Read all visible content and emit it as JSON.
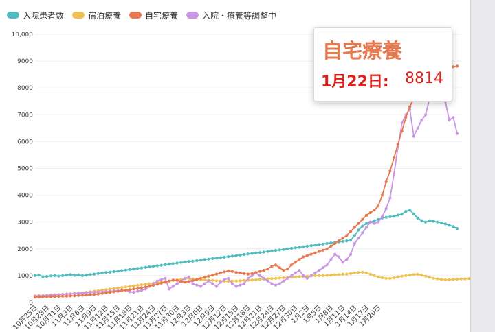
{
  "chart_data": {
    "type": "line",
    "title": "",
    "xlabel": "",
    "ylabel": "",
    "ylim": [
      0,
      10000
    ],
    "yticks": [
      0,
      1000,
      2000,
      3000,
      4000,
      5000,
      6000,
      7000,
      8000,
      9000,
      10000
    ],
    "ytick_labels": [
      "0",
      "1000",
      "2000",
      "3000",
      "4000",
      "5000",
      "6000",
      "7000",
      "8000",
      "9000",
      "10,000"
    ],
    "xtick_labels": [
      "10月25日",
      "10月28日",
      "10月31日",
      "11月3日",
      "11月6日",
      "11月9日",
      "11月12日",
      "11月15日",
      "11月18日",
      "11月21日",
      "11月24日",
      "11月27日",
      "11月30日",
      "12月3日",
      "12月6日",
      "12月9日",
      "12月12日",
      "12月15日",
      "12月18日",
      "12月21日",
      "12月24日",
      "12月27日",
      "12月30日",
      "1月2日",
      "1月5日",
      "1月8日",
      "1月11日",
      "1月14日",
      "1月17日",
      "1月20日"
    ],
    "grid": true,
    "legend_position": "top-left",
    "series": [
      {
        "name": "入院患者数",
        "color": "#4fbcbf",
        "values": [
          1000,
          1020,
          960,
          970,
          990,
          1000,
          980,
          1000,
          1020,
          1040,
          1010,
          1030,
          1000,
          1020,
          1040,
          1060,
          1080,
          1100,
          1120,
          1130,
          1150,
          1170,
          1190,
          1210,
          1230,
          1250,
          1270,
          1290,
          1310,
          1330,
          1350,
          1370,
          1390,
          1410,
          1430,
          1450,
          1470,
          1490,
          1510,
          1530,
          1540,
          1560,
          1580,
          1600,
          1620,
          1640,
          1660,
          1670,
          1690,
          1710,
          1730,
          1750,
          1770,
          1790,
          1810,
          1830,
          1850,
          1860,
          1880,
          1900,
          1920,
          1940,
          1960,
          1980,
          2000,
          2020,
          2040,
          2060,
          2080,
          2100,
          2120,
          2140,
          2160,
          2180,
          2200,
          2220,
          2240,
          2260,
          2280,
          2300,
          2320,
          2500,
          2700,
          2850,
          2950,
          3000,
          3050,
          3100,
          3150,
          3180,
          3200,
          3220,
          3260,
          3300,
          3400,
          3450,
          3300,
          3150,
          3050,
          3000,
          3050,
          3030,
          3000,
          2970,
          2930,
          2880,
          2830,
          2760
        ]
      },
      {
        "name": "宿泊療養",
        "color": "#efc04e",
        "values": [
          250,
          255,
          260,
          270,
          280,
          290,
          300,
          310,
          320,
          330,
          340,
          350,
          360,
          380,
          400,
          420,
          440,
          460,
          480,
          500,
          520,
          540,
          560,
          580,
          600,
          620,
          640,
          660,
          680,
          700,
          720,
          740,
          760,
          780,
          800,
          820,
          840,
          860,
          880,
          900,
          880,
          860,
          850,
          840,
          830,
          820,
          810,
          800,
          790,
          790,
          800,
          800,
          810,
          820,
          830,
          840,
          850,
          860,
          870,
          880,
          890,
          900,
          910,
          920,
          930,
          940,
          950,
          960,
          970,
          980,
          990,
          1000,
          1000,
          1000,
          1010,
          1020,
          1030,
          1040,
          1050,
          1060,
          1080,
          1100,
          1120,
          1130,
          1100,
          1050,
          1000,
          950,
          920,
          900,
          900,
          920,
          950,
          980,
          1000,
          1020,
          1040,
          1050,
          1020,
          980,
          940,
          900,
          880,
          860,
          850,
          850,
          860,
          870,
          880,
          880,
          890
        ]
      },
      {
        "name": "自宅療養",
        "color": "#e8794f",
        "values": [
          200,
          205,
          210,
          215,
          220,
          225,
          230,
          235,
          240,
          245,
          250,
          260,
          270,
          280,
          290,
          300,
          320,
          340,
          360,
          380,
          400,
          420,
          440,
          460,
          480,
          500,
          520,
          550,
          580,
          610,
          640,
          680,
          720,
          760,
          800,
          840,
          820,
          780,
          760,
          780,
          820,
          860,
          900,
          940,
          980,
          1020,
          1060,
          1100,
          1140,
          1180,
          1160,
          1120,
          1100,
          1080,
          1060,
          1080,
          1120,
          1160,
          1200,
          1250,
          1350,
          1400,
          1300,
          1200,
          1250,
          1400,
          1500,
          1600,
          1700,
          1750,
          1800,
          1850,
          1900,
          1950,
          2000,
          2100,
          2200,
          2300,
          2400,
          2500,
          2650,
          2800,
          2950,
          3100,
          3250,
          3350,
          3450,
          3600,
          4000,
          4500,
          4900,
          5400,
          5900,
          6400,
          6900,
          7300,
          7600,
          7900,
          8100,
          8300,
          8400,
          8500,
          8600,
          8650,
          8700,
          8750,
          8790,
          8814
        ]
      },
      {
        "name": "入院・療養等調整中",
        "color": "#c995e4",
        "values": [
          230,
          240,
          250,
          260,
          270,
          280,
          290,
          300,
          310,
          320,
          330,
          340,
          350,
          360,
          370,
          380,
          390,
          400,
          410,
          420,
          430,
          440,
          450,
          460,
          400,
          380,
          420,
          450,
          500,
          600,
          700,
          800,
          850,
          900,
          500,
          600,
          700,
          800,
          900,
          950,
          700,
          650,
          600,
          700,
          800,
          700,
          600,
          750,
          850,
          900,
          700,
          600,
          650,
          700,
          900,
          1000,
          1100,
          1000,
          900,
          800,
          700,
          650,
          700,
          800,
          900,
          1000,
          1100,
          1200,
          1000,
          900,
          1000,
          1100,
          1200,
          1300,
          1400,
          1600,
          1800,
          1700,
          1500,
          1600,
          1800,
          2200,
          2400,
          2600,
          2800,
          3000,
          2950,
          3000,
          3200,
          3500,
          3900,
          4800,
          5800,
          6700,
          7000,
          7200,
          6200,
          6500,
          6800,
          7000,
          7600,
          7800,
          8100,
          7700,
          7500,
          6800,
          6900,
          6300
        ]
      }
    ]
  },
  "tooltip": {
    "series_name": "自宅療養",
    "date": "1月22日:",
    "value": "8814",
    "series_color": "#e8794f",
    "accent_color": "#e0201b"
  }
}
